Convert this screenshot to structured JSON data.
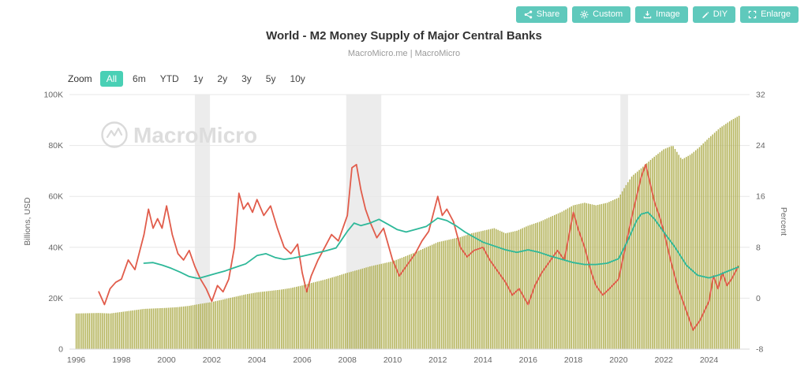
{
  "header": {
    "title": "World - M2 Money Supply of Major Central Banks",
    "subtitle": "MacroMicro.me | MacroMicro"
  },
  "toolbar": {
    "button_color": "#5fc9bc",
    "buttons": [
      {
        "label": "Share",
        "icon": "share-icon"
      },
      {
        "label": "Custom",
        "icon": "gear-icon"
      },
      {
        "label": "Image",
        "icon": "image-download-icon"
      },
      {
        "label": "DIY",
        "icon": "pencil-icon"
      },
      {
        "label": "Enlarge",
        "icon": "enlarge-icon"
      }
    ]
  },
  "zoom_controls": {
    "label": "Zoom",
    "options": [
      "All",
      "6m",
      "YTD",
      "1y",
      "2y",
      "3y",
      "5y",
      "10y"
    ],
    "selected": "All",
    "selected_color": "#49d0b5"
  },
  "watermark": {
    "text": "MacroMicro"
  },
  "chart_data": {
    "type": "mixed-bar-line",
    "title": "World - M2 Money Supply of Major Central Banks",
    "grid": "horizontal",
    "x_axis": {
      "range": [
        1995.7,
        2025.8
      ],
      "ticks": [
        1996,
        1998,
        2000,
        2002,
        2004,
        2006,
        2008,
        2010,
        2012,
        2014,
        2016,
        2018,
        2020,
        2022,
        2024
      ]
    },
    "left_axis": {
      "label": "Billions, USD",
      "range": [
        0,
        100
      ],
      "ticks": [
        {
          "value": 0,
          "label": "0"
        },
        {
          "value": 20,
          "label": "20K"
        },
        {
          "value": 40,
          "label": "40K"
        },
        {
          "value": 60,
          "label": "60K"
        },
        {
          "value": 80,
          "label": "80K"
        },
        {
          "value": 100,
          "label": "100K"
        }
      ]
    },
    "right_axis": {
      "label": "Percent",
      "range": [
        -8,
        32
      ],
      "ticks": [
        {
          "value": -8,
          "label": "-8"
        },
        {
          "value": 0,
          "label": "0"
        },
        {
          "value": 8,
          "label": "8"
        },
        {
          "value": 16,
          "label": "16"
        },
        {
          "value": 24,
          "label": "24"
        },
        {
          "value": 32,
          "label": "32"
        }
      ]
    },
    "recession_bands": [
      [
        2001.25,
        2001.92
      ],
      [
        2007.95,
        2009.5
      ],
      [
        2020.08,
        2020.42
      ]
    ],
    "series": [
      {
        "name": "m2-money-supply-bars",
        "type": "bar",
        "axis": "left",
        "color": "#b2b156",
        "unit": "K billions USD",
        "start": 1996.0,
        "end": 2025.4,
        "anchors": [
          [
            1996.0,
            14.0
          ],
          [
            1996.5,
            14.1
          ],
          [
            1997.0,
            14.2
          ],
          [
            1997.5,
            14.0
          ],
          [
            1998.0,
            14.6
          ],
          [
            1998.5,
            15.2
          ],
          [
            1999.0,
            15.8
          ],
          [
            1999.5,
            16.0
          ],
          [
            2000.0,
            16.2
          ],
          [
            2000.5,
            16.5
          ],
          [
            2001.0,
            17.0
          ],
          [
            2001.5,
            17.8
          ],
          [
            2002.0,
            18.5
          ],
          [
            2002.5,
            19.5
          ],
          [
            2003.0,
            20.5
          ],
          [
            2003.5,
            21.5
          ],
          [
            2004.0,
            22.3
          ],
          [
            2004.5,
            22.8
          ],
          [
            2005.0,
            23.3
          ],
          [
            2005.5,
            24.0
          ],
          [
            2006.0,
            25.0
          ],
          [
            2006.5,
            26.2
          ],
          [
            2007.0,
            27.3
          ],
          [
            2007.5,
            28.6
          ],
          [
            2008.0,
            30.0
          ],
          [
            2008.5,
            31.2
          ],
          [
            2009.0,
            32.5
          ],
          [
            2009.5,
            33.5
          ],
          [
            2010.0,
            34.5
          ],
          [
            2010.5,
            36.2
          ],
          [
            2011.0,
            38.0
          ],
          [
            2011.5,
            40.0
          ],
          [
            2012.0,
            42.0
          ],
          [
            2012.5,
            43.0
          ],
          [
            2013.0,
            44.0
          ],
          [
            2013.5,
            45.5
          ],
          [
            2014.0,
            46.5
          ],
          [
            2014.5,
            47.5
          ],
          [
            2015.0,
            45.5
          ],
          [
            2015.5,
            46.5
          ],
          [
            2016.0,
            48.5
          ],
          [
            2016.5,
            50.0
          ],
          [
            2017.0,
            52.0
          ],
          [
            2017.5,
            54.0
          ],
          [
            2018.0,
            56.5
          ],
          [
            2018.5,
            57.5
          ],
          [
            2019.0,
            56.5
          ],
          [
            2019.5,
            57.5
          ],
          [
            2020.0,
            59.5
          ],
          [
            2020.3,
            64.0
          ],
          [
            2020.6,
            68.0
          ],
          [
            2021.0,
            71.0
          ],
          [
            2021.5,
            75.0
          ],
          [
            2022.0,
            78.5
          ],
          [
            2022.4,
            80.0
          ],
          [
            2022.8,
            74.5
          ],
          [
            2023.2,
            76.5
          ],
          [
            2023.6,
            79.5
          ],
          [
            2024.0,
            83.0
          ],
          [
            2024.5,
            87.0
          ],
          [
            2025.0,
            90.0
          ],
          [
            2025.4,
            92.0
          ]
        ]
      },
      {
        "name": "yoy-growth-line-red",
        "type": "line",
        "axis": "right",
        "color": "#e15c4b",
        "unit": "percent",
        "points": [
          [
            1997.0,
            1.0
          ],
          [
            1997.25,
            -1.0
          ],
          [
            1997.5,
            1.5
          ],
          [
            1997.75,
            2.5
          ],
          [
            1998.0,
            3.0
          ],
          [
            1998.3,
            6.0
          ],
          [
            1998.6,
            4.5
          ],
          [
            1999.0,
            10.0
          ],
          [
            1999.2,
            14.0
          ],
          [
            1999.4,
            11.0
          ],
          [
            1999.6,
            12.5
          ],
          [
            1999.8,
            11.0
          ],
          [
            2000.0,
            14.5
          ],
          [
            2000.25,
            10.0
          ],
          [
            2000.5,
            7.0
          ],
          [
            2000.75,
            6.0
          ],
          [
            2001.0,
            7.5
          ],
          [
            2001.25,
            5.0
          ],
          [
            2001.5,
            3.0
          ],
          [
            2001.75,
            1.5
          ],
          [
            2002.0,
            -0.5
          ],
          [
            2002.25,
            2.0
          ],
          [
            2002.5,
            1.0
          ],
          [
            2002.75,
            3.0
          ],
          [
            2003.0,
            8.0
          ],
          [
            2003.2,
            16.5
          ],
          [
            2003.4,
            14.0
          ],
          [
            2003.6,
            15.0
          ],
          [
            2003.8,
            13.5
          ],
          [
            2004.0,
            15.5
          ],
          [
            2004.3,
            13.0
          ],
          [
            2004.6,
            14.5
          ],
          [
            2004.9,
            11.0
          ],
          [
            2005.2,
            8.0
          ],
          [
            2005.5,
            7.0
          ],
          [
            2005.8,
            8.5
          ],
          [
            2006.0,
            4.0
          ],
          [
            2006.2,
            1.0
          ],
          [
            2006.4,
            3.5
          ],
          [
            2006.7,
            6.0
          ],
          [
            2007.0,
            8.0
          ],
          [
            2007.3,
            10.0
          ],
          [
            2007.6,
            9.0
          ],
          [
            2008.0,
            13.0
          ],
          [
            2008.2,
            20.5
          ],
          [
            2008.4,
            21.0
          ],
          [
            2008.6,
            17.0
          ],
          [
            2008.8,
            14.0
          ],
          [
            2009.0,
            12.0
          ],
          [
            2009.3,
            9.5
          ],
          [
            2009.6,
            11.0
          ],
          [
            2010.0,
            6.0
          ],
          [
            2010.3,
            3.5
          ],
          [
            2010.6,
            5.0
          ],
          [
            2011.0,
            7.0
          ],
          [
            2011.3,
            9.0
          ],
          [
            2011.6,
            10.5
          ],
          [
            2012.0,
            16.0
          ],
          [
            2012.2,
            13.0
          ],
          [
            2012.4,
            14.0
          ],
          [
            2012.7,
            12.0
          ],
          [
            2013.0,
            8.0
          ],
          [
            2013.3,
            6.5
          ],
          [
            2013.6,
            7.5
          ],
          [
            2014.0,
            8.0
          ],
          [
            2014.3,
            6.0
          ],
          [
            2014.6,
            4.5
          ],
          [
            2015.0,
            2.5
          ],
          [
            2015.3,
            0.5
          ],
          [
            2015.6,
            1.5
          ],
          [
            2016.0,
            -1.0
          ],
          [
            2016.3,
            2.0
          ],
          [
            2016.6,
            4.0
          ],
          [
            2017.0,
            6.0
          ],
          [
            2017.3,
            7.5
          ],
          [
            2017.6,
            6.0
          ],
          [
            2018.0,
            13.5
          ],
          [
            2018.2,
            11.0
          ],
          [
            2018.5,
            8.0
          ],
          [
            2018.8,
            4.0
          ],
          [
            2019.0,
            2.0
          ],
          [
            2019.3,
            0.5
          ],
          [
            2019.6,
            1.5
          ],
          [
            2020.0,
            3.0
          ],
          [
            2020.3,
            8.0
          ],
          [
            2020.6,
            13.0
          ],
          [
            2021.0,
            19.0
          ],
          [
            2021.2,
            21.0
          ],
          [
            2021.4,
            18.0
          ],
          [
            2021.6,
            15.0
          ],
          [
            2021.8,
            13.0
          ],
          [
            2022.0,
            10.5
          ],
          [
            2022.3,
            6.0
          ],
          [
            2022.6,
            2.0
          ],
          [
            2023.0,
            -2.0
          ],
          [
            2023.3,
            -5.0
          ],
          [
            2023.6,
            -3.5
          ],
          [
            2024.0,
            -0.5
          ],
          [
            2024.2,
            3.5
          ],
          [
            2024.4,
            1.5
          ],
          [
            2024.6,
            4.0
          ],
          [
            2024.8,
            2.0
          ],
          [
            2025.0,
            3.0
          ],
          [
            2025.3,
            5.0
          ]
        ]
      },
      {
        "name": "smoothed-growth-line-teal",
        "type": "line",
        "axis": "right",
        "color": "#2eb899",
        "unit": "percent",
        "points": [
          [
            1999.0,
            5.5
          ],
          [
            1999.4,
            5.6
          ],
          [
            1999.8,
            5.2
          ],
          [
            2000.2,
            4.7
          ],
          [
            2000.6,
            4.1
          ],
          [
            2001.0,
            3.4
          ],
          [
            2001.4,
            3.1
          ],
          [
            2001.8,
            3.5
          ],
          [
            2002.2,
            3.9
          ],
          [
            2002.6,
            4.3
          ],
          [
            2003.0,
            4.8
          ],
          [
            2003.5,
            5.4
          ],
          [
            2004.0,
            6.7
          ],
          [
            2004.4,
            7.0
          ],
          [
            2004.8,
            6.4
          ],
          [
            2005.2,
            6.1
          ],
          [
            2005.6,
            6.3
          ],
          [
            2006.0,
            6.6
          ],
          [
            2006.5,
            7.0
          ],
          [
            2007.0,
            7.4
          ],
          [
            2007.5,
            7.9
          ],
          [
            2008.0,
            10.5
          ],
          [
            2008.3,
            11.8
          ],
          [
            2008.6,
            11.4
          ],
          [
            2009.0,
            11.8
          ],
          [
            2009.4,
            12.4
          ],
          [
            2009.8,
            11.6
          ],
          [
            2010.2,
            10.8
          ],
          [
            2010.6,
            10.4
          ],
          [
            2011.0,
            10.8
          ],
          [
            2011.5,
            11.3
          ],
          [
            2012.0,
            12.6
          ],
          [
            2012.4,
            12.2
          ],
          [
            2012.8,
            11.4
          ],
          [
            2013.2,
            10.4
          ],
          [
            2013.6,
            9.6
          ],
          [
            2014.0,
            8.8
          ],
          [
            2014.5,
            8.2
          ],
          [
            2015.0,
            7.6
          ],
          [
            2015.5,
            7.2
          ],
          [
            2016.0,
            7.6
          ],
          [
            2016.5,
            7.2
          ],
          [
            2017.0,
            6.6
          ],
          [
            2017.5,
            6.1
          ],
          [
            2018.0,
            5.6
          ],
          [
            2018.5,
            5.3
          ],
          [
            2019.0,
            5.3
          ],
          [
            2019.5,
            5.5
          ],
          [
            2020.0,
            6.2
          ],
          [
            2020.4,
            9.0
          ],
          [
            2020.8,
            12.2
          ],
          [
            2021.0,
            13.2
          ],
          [
            2021.3,
            13.5
          ],
          [
            2021.6,
            12.4
          ],
          [
            2022.0,
            10.4
          ],
          [
            2022.5,
            8.0
          ],
          [
            2023.0,
            5.2
          ],
          [
            2023.5,
            3.6
          ],
          [
            2024.0,
            3.2
          ],
          [
            2024.4,
            3.6
          ],
          [
            2024.8,
            4.2
          ],
          [
            2025.3,
            4.9
          ]
        ]
      }
    ]
  }
}
